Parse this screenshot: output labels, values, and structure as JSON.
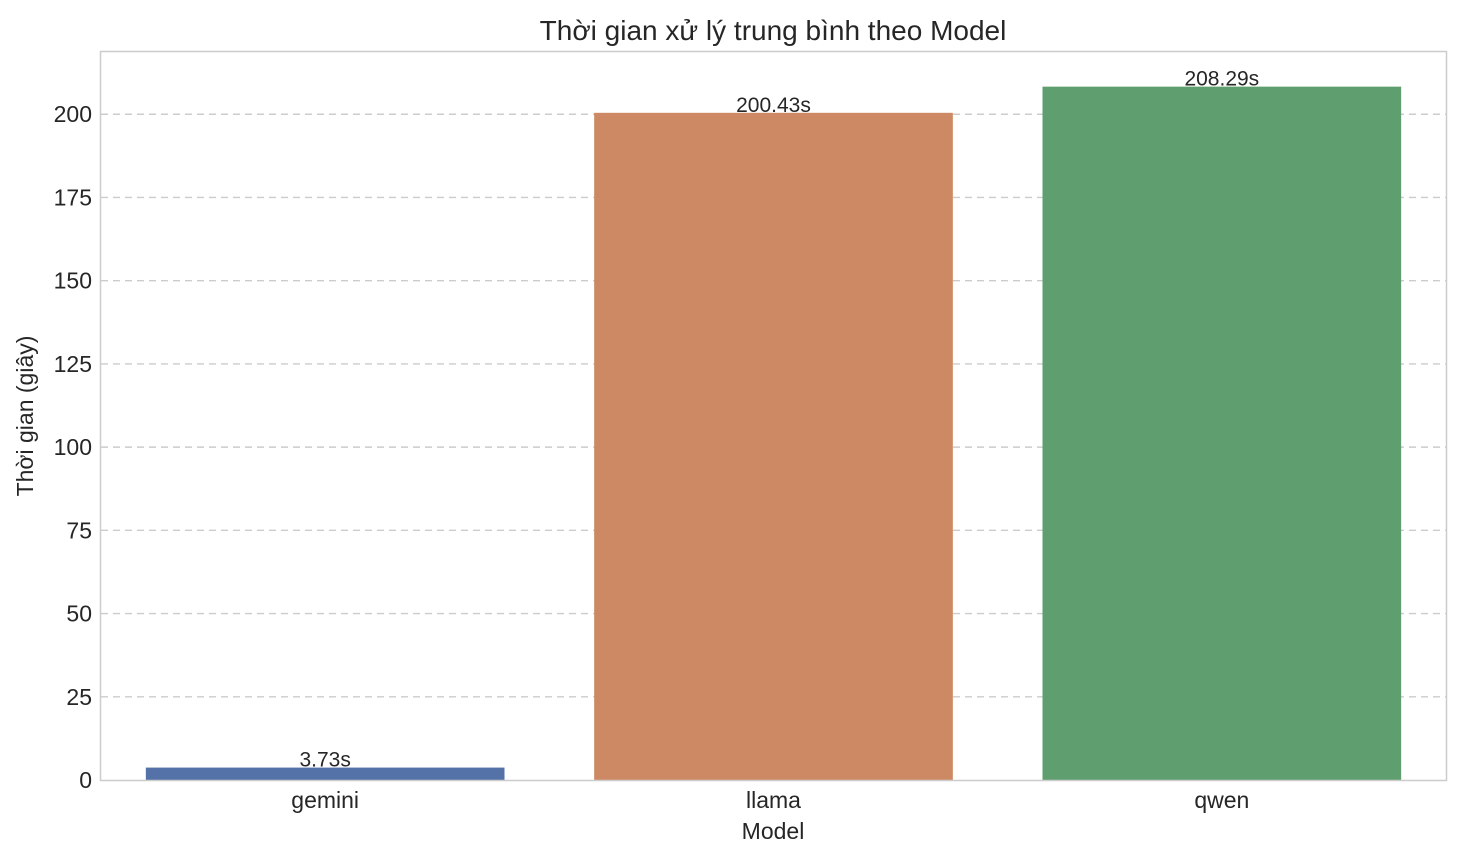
{
  "chart_data": {
    "type": "bar",
    "title": "Thời gian xử lý trung bình theo Model",
    "xlabel": "Model",
    "ylabel": "Thời gian (giây)",
    "categories": [
      "gemini",
      "llama",
      "qwen"
    ],
    "values": [
      3.73,
      200.43,
      208.29
    ],
    "data_labels": [
      "3.73s",
      "200.43s",
      "208.29s"
    ],
    "colors": [
      "#5471a8",
      "#cd8963",
      "#5f9e6e"
    ],
    "ylim": [
      0,
      218.7
    ],
    "yticks": [
      0,
      25,
      50,
      75,
      100,
      125,
      150,
      175,
      200
    ],
    "grid": true,
    "grid_axis": "y",
    "legend": "none"
  }
}
